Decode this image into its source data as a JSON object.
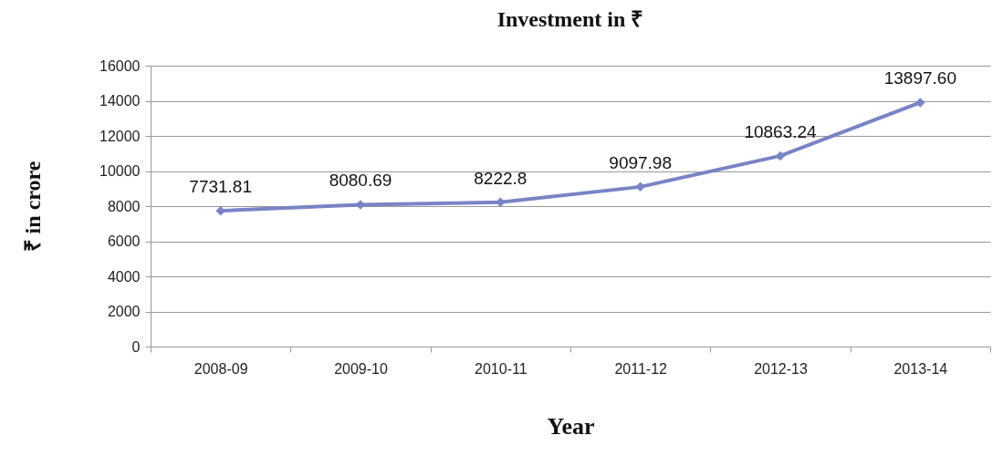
{
  "chart_data": {
    "type": "line",
    "title": "Investment in ₹",
    "xlabel": "Year",
    "ylabel": "₹ in crore",
    "categories": [
      "2008-09",
      "2009-10",
      "2010-11",
      "2011-12",
      "2012-13",
      "2013-14"
    ],
    "series": [
      {
        "color": "#7884c4",
        "values": [
          7731.81,
          8080.69,
          8222.8,
          9097.98,
          10863.24,
          13897.6
        ],
        "value_labels": [
          "7731.81",
          "8080.69",
          "8222.8",
          "9097.98",
          "10863.24",
          "13897.60"
        ]
      }
    ],
    "ylim": [
      0,
      16000
    ],
    "yticks": [
      0,
      2000,
      4000,
      6000,
      8000,
      10000,
      12000,
      14000,
      16000
    ],
    "grid": "y",
    "marker": "diamond",
    "legend": false
  }
}
